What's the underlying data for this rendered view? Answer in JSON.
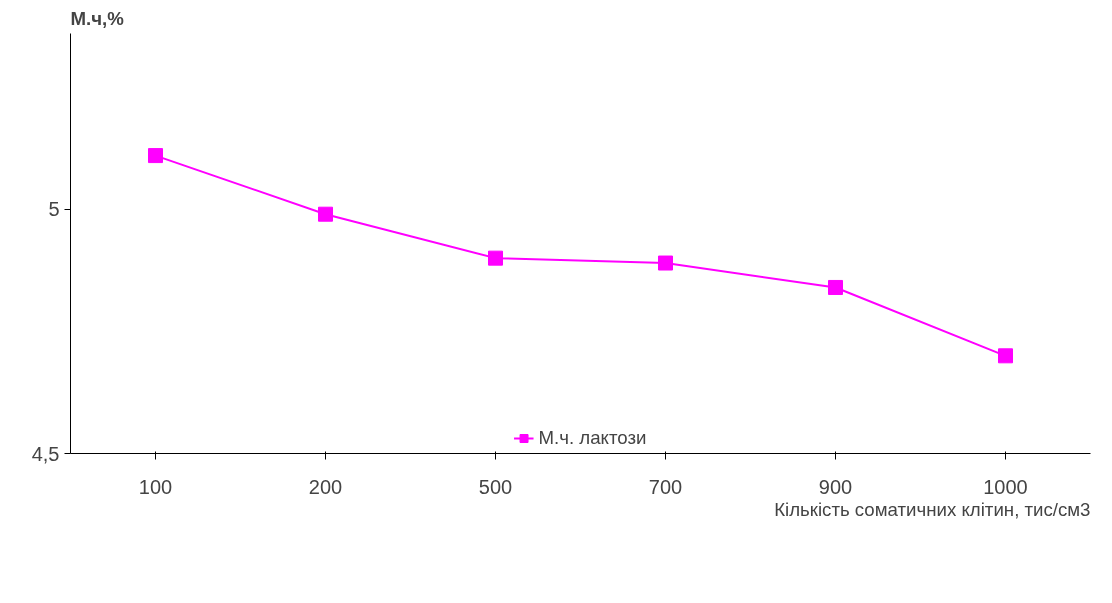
{
  "chart_data": {
    "type": "line",
    "ylabel": "М.ч,%",
    "xlabel": "Кількість соматичних клітин, тис/см3",
    "categories": [
      "100",
      "200",
      "500",
      "700",
      "900",
      "1000"
    ],
    "series": [
      {
        "name": "М.ч. лактози",
        "color": "#ff00ff",
        "values": [
          5.11,
          4.99,
          4.9,
          4.89,
          4.84,
          4.7
        ]
      }
    ],
    "ylim": [
      4.5,
      5.36
    ],
    "yticks": [
      {
        "value": 4.5,
        "label": "4,5"
      },
      5
    ],
    "grid": false,
    "legend": "bottom",
    "marker": "square",
    "line_style": "solid"
  }
}
